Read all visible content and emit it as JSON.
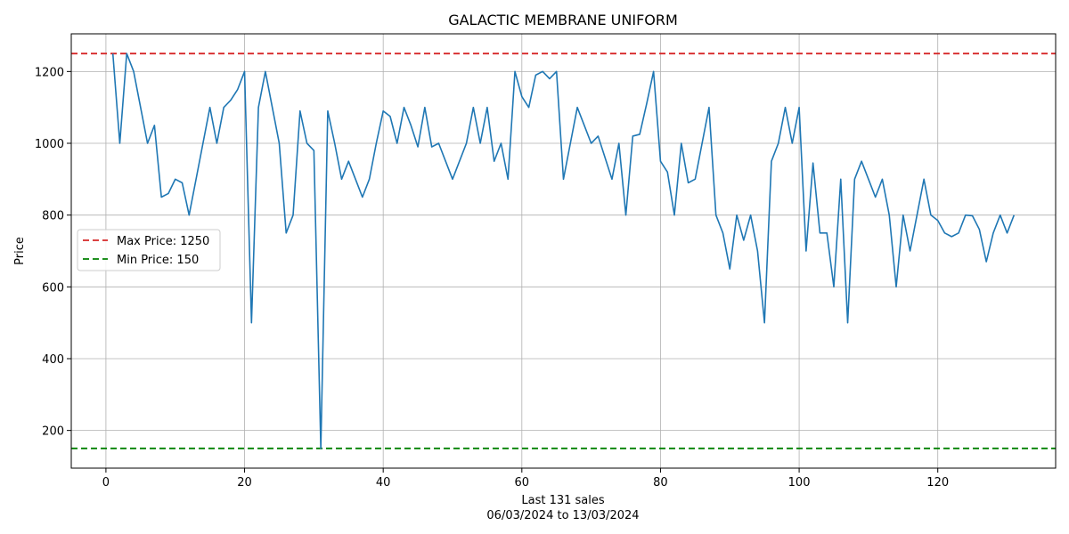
{
  "chart_data": {
    "type": "line",
    "title": "GALACTIC MEMBRANE UNIFORM",
    "xlabel": "Last 131 sales",
    "xlabel_line2": "06/03/2024 to 13/03/2024",
    "ylabel": "Price",
    "xlim": [
      -5,
      137
    ],
    "ylim": [
      95,
      1305
    ],
    "xticks": [
      0,
      20,
      40,
      60,
      80,
      100,
      120
    ],
    "yticks": [
      200,
      400,
      600,
      800,
      1000,
      1200
    ],
    "grid": true,
    "legend_position": "center-left",
    "series": [
      {
        "color": "#1f77b4",
        "x": [
          1,
          2,
          3,
          4,
          5,
          6,
          7,
          8,
          9,
          10,
          11,
          12,
          13,
          14,
          15,
          16,
          17,
          18,
          19,
          20,
          21,
          22,
          23,
          24,
          25,
          26,
          27,
          28,
          29,
          30,
          31,
          32,
          33,
          34,
          35,
          36,
          37,
          38,
          39,
          40,
          41,
          42,
          43,
          44,
          45,
          46,
          47,
          48,
          49,
          50,
          51,
          52,
          53,
          54,
          55,
          56,
          57,
          58,
          59,
          60,
          61,
          62,
          63,
          64,
          65,
          66,
          67,
          68,
          69,
          70,
          71,
          72,
          73,
          74,
          75,
          76,
          77,
          78,
          79,
          80,
          81,
          82,
          83,
          84,
          85,
          86,
          87,
          88,
          89,
          90,
          91,
          92,
          93,
          94,
          95,
          96,
          97,
          98,
          99,
          100,
          101,
          102,
          103,
          104,
          105,
          106,
          107,
          108,
          109,
          110,
          111,
          112,
          113,
          114,
          115,
          116,
          117,
          118,
          119,
          120,
          121,
          122,
          123,
          124,
          125,
          126,
          127,
          128,
          129,
          130,
          131
        ],
        "y": [
          1250,
          1000,
          1250,
          1200,
          1100,
          1000,
          1050,
          850,
          860,
          900,
          890,
          800,
          900,
          1000,
          1100,
          1000,
          1100,
          1120,
          1150,
          1200,
          500,
          1100,
          1200,
          1100,
          1000,
          750,
          800,
          1090,
          1000,
          980,
          150,
          1090,
          1000,
          900,
          950,
          900,
          850,
          900,
          1000,
          1090,
          1075,
          1000,
          1100,
          1050,
          990,
          1100,
          990,
          1000,
          950,
          900,
          950,
          1000,
          1100,
          1000,
          1100,
          950,
          1000,
          900,
          1200,
          1130,
          1100,
          1190,
          1200,
          1180,
          1200,
          900,
          1000,
          1100,
          1050,
          1000,
          1020,
          960,
          900,
          1000,
          800,
          1020,
          1025,
          1110,
          1200,
          950,
          920,
          800,
          1000,
          890,
          900,
          1000,
          1100,
          800,
          750,
          650,
          800,
          730,
          800,
          700,
          500,
          950,
          1000,
          1100,
          1000,
          1100,
          700,
          945,
          750,
          750,
          600,
          900,
          500,
          900,
          950,
          900,
          850,
          900,
          800,
          600,
          800,
          700,
          800,
          900,
          800,
          785,
          750,
          740,
          750,
          800,
          798,
          760,
          670,
          750,
          800,
          750,
          800
        ]
      }
    ],
    "reference_lines": [
      {
        "label": "Max Price: 1250",
        "value": 1250,
        "color": "#d62728"
      },
      {
        "label": "Min Price: 150",
        "value": 150,
        "color": "#008000"
      }
    ]
  }
}
